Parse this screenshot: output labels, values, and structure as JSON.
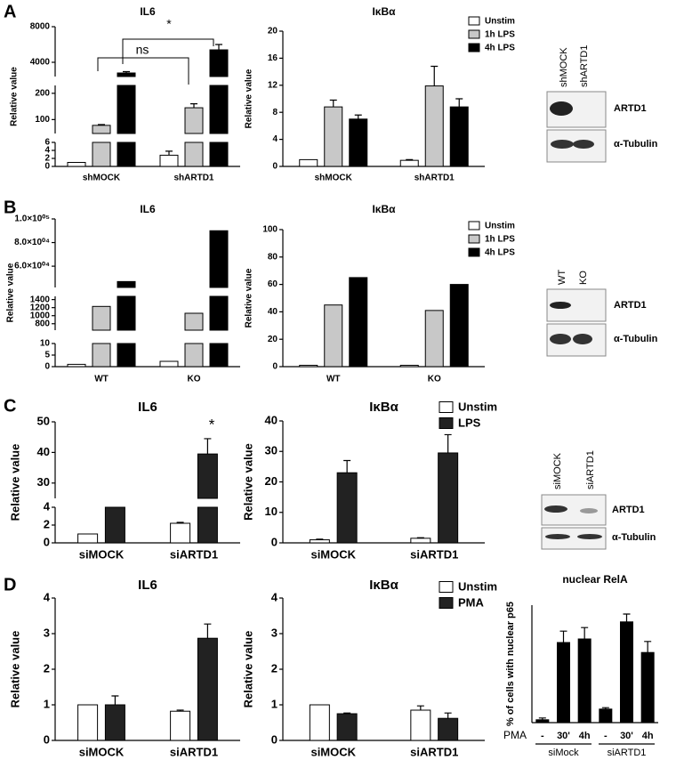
{
  "panels": [
    "A",
    "B",
    "C",
    "D"
  ],
  "blots": [
    {
      "lanes": [
        "shMOCK",
        "shARTD1"
      ],
      "bands": [
        "ARTD1",
        "α-Tubulin"
      ]
    },
    {
      "lanes": [
        "WT",
        "KO"
      ],
      "bands": [
        "ARTD1",
        "α-Tubulin"
      ]
    },
    {
      "lanes": [
        "siMOCK",
        "siARTD1"
      ],
      "bands": [
        "ARTD1",
        "α-Tubulin"
      ]
    }
  ],
  "chart_data": [
    {
      "type": "bar",
      "title": "IL6",
      "ylabel": "Relative value",
      "categories": [
        "shMOCK",
        "shARTD1"
      ],
      "series": [
        {
          "name": "Unstim",
          "color": "#ffffff",
          "values": [
            1,
            2.8
          ],
          "errors": [
            0,
            1
          ]
        },
        {
          "name": "1h LPS",
          "color": "#c8c8c8",
          "values": [
            78,
            145
          ],
          "errors": [
            3,
            15
          ]
        },
        {
          "name": "4h LPS",
          "color": "#000000",
          "values": [
            2800,
            5400
          ],
          "errors": [
            150,
            600
          ]
        }
      ],
      "segments": [
        {
          "ylim": [
            0,
            6
          ],
          "yticks": [
            0,
            2,
            4,
            6
          ]
        },
        {
          "ylim": [
            47,
            230
          ],
          "yticks": [
            100,
            200
          ]
        },
        {
          "ylim": [
            2400,
            8000
          ],
          "yticks": [
            4000,
            8000
          ]
        }
      ],
      "legend": false,
      "annotations": [
        "ns",
        "*"
      ]
    },
    {
      "type": "bar",
      "title": "IκBα",
      "ylabel": "Relative value",
      "categories": [
        "shMOCK",
        "shARTD1"
      ],
      "series": [
        {
          "name": "Unstim",
          "color": "#ffffff",
          "values": [
            1,
            0.9
          ],
          "errors": [
            0,
            0.1
          ]
        },
        {
          "name": "1h LPS",
          "color": "#c8c8c8",
          "values": [
            8.8,
            11.9
          ],
          "errors": [
            1,
            2.9
          ]
        },
        {
          "name": "4h LPS",
          "color": "#000000",
          "values": [
            7,
            8.8
          ],
          "errors": [
            0.6,
            1.2
          ]
        }
      ],
      "ylim": [
        0,
        20
      ],
      "yticks": [
        0,
        4,
        8,
        12,
        16,
        20
      ],
      "legend": true
    },
    {
      "type": "bar",
      "title": "IL6",
      "ylabel": "Relative value",
      "categories": [
        "WT",
        "KO"
      ],
      "series": [
        {
          "name": "Unstim",
          "color": "#ffffff",
          "values": [
            1,
            2.3
          ]
        },
        {
          "name": "1h LPS",
          "color": "#c8c8c8",
          "values": [
            1230,
            1060
          ]
        },
        {
          "name": "4h LPS",
          "color": "#000000",
          "values": [
            47000,
            90000
          ]
        }
      ],
      "segments": [
        {
          "ylim": [
            0,
            10
          ],
          "yticks": [
            0,
            5,
            10
          ]
        },
        {
          "ylim": [
            640,
            1480
          ],
          "yticks": [
            800,
            1000,
            1200,
            1400
          ]
        },
        {
          "ylim": [
            42000,
            100000
          ],
          "yticks": [
            {
              "value": 60000,
              "label": "6.0×10⁰⁴"
            },
            {
              "value": 80000,
              "label": "8.0×10⁰⁴"
            },
            {
              "value": 100000,
              "label": "1.0×10⁰⁵"
            }
          ]
        }
      ],
      "legend": false
    },
    {
      "type": "bar",
      "title": "IκBα",
      "ylabel": "Relative value",
      "categories": [
        "WT",
        "KO"
      ],
      "series": [
        {
          "name": "Unstim",
          "color": "#ffffff",
          "values": [
            1,
            1
          ]
        },
        {
          "name": "1h LPS",
          "color": "#c8c8c8",
          "values": [
            45,
            41
          ]
        },
        {
          "name": "4h LPS",
          "color": "#000000",
          "values": [
            65,
            60
          ]
        }
      ],
      "ylim": [
        0,
        100
      ],
      "yticks": [
        0,
        20,
        40,
        60,
        80,
        100
      ],
      "legend": true
    },
    {
      "type": "bar",
      "title": "IL6",
      "ylabel": "Relative value",
      "categories": [
        "siMOCK",
        "siARTD1"
      ],
      "series": [
        {
          "name": "Unstim",
          "color": "#ffffff",
          "values": [
            1,
            2.2
          ],
          "errors": [
            0,
            0.1
          ]
        },
        {
          "name": "LPS",
          "color": "#222222",
          "values": [
            4,
            39.5
          ],
          "errors": [
            0,
            5
          ]
        }
      ],
      "segments": [
        {
          "ylim": [
            0,
            4
          ],
          "yticks": [
            0,
            2,
            4
          ]
        },
        {
          "ylim": [
            25,
            50
          ],
          "yticks": [
            30,
            40,
            50
          ]
        }
      ],
      "legend": false,
      "annotations": [
        "*"
      ]
    },
    {
      "type": "bar",
      "title": "IκBα",
      "ylabel": "Relative value",
      "categories": [
        "siMOCK",
        "siARTD1"
      ],
      "series": [
        {
          "name": "Unstim",
          "color": "#ffffff",
          "values": [
            1,
            1.5
          ],
          "errors": [
            0.2,
            0.2
          ]
        },
        {
          "name": "LPS",
          "color": "#222222",
          "values": [
            23,
            29.5
          ],
          "errors": [
            4,
            6
          ]
        }
      ],
      "ylim": [
        0,
        40
      ],
      "yticks": [
        0,
        10,
        20,
        30,
        40
      ],
      "legend": true
    },
    {
      "type": "bar",
      "title": "IL6",
      "ylabel": "Relative value",
      "categories": [
        "siMOCK",
        "siARTD1"
      ],
      "series": [
        {
          "name": "Unstim",
          "color": "#ffffff",
          "values": [
            1,
            0.82
          ],
          "errors": [
            0,
            0.03
          ]
        },
        {
          "name": "PMA",
          "color": "#222222",
          "values": [
            1,
            2.87
          ],
          "errors": [
            0.25,
            0.4
          ]
        }
      ],
      "ylim": [
        0,
        4
      ],
      "yticks": [
        0,
        1,
        2,
        3,
        4
      ],
      "legend": false
    },
    {
      "type": "bar",
      "title": "IκBα",
      "ylabel": "Relative value",
      "categories": [
        "siMOCK",
        "siARTD1"
      ],
      "series": [
        {
          "name": "Unstim",
          "color": "#ffffff",
          "values": [
            1,
            0.85
          ],
          "errors": [
            0,
            0.12
          ]
        },
        {
          "name": "PMA",
          "color": "#222222",
          "values": [
            0.75,
            0.62
          ],
          "errors": [
            0.02,
            0.15
          ]
        }
      ],
      "ylim": [
        0,
        4
      ],
      "yticks": [
        0,
        1,
        2,
        3,
        4
      ],
      "legend": true
    },
    {
      "type": "bar",
      "title": "nuclear RelA",
      "ylabel": "% of cells with nuclear p65",
      "xlabel": "PMA",
      "categories": [
        "-",
        "30'",
        "4h",
        "-",
        "30'",
        "4h"
      ],
      "groups": [
        "siMock",
        "siARTD1"
      ],
      "series": [
        {
          "color": "#000000",
          "values": [
            0.8,
            22.5,
            23.5,
            3.8,
            28.3,
            19.7
          ],
          "errors": [
            0.5,
            3.2,
            3.2,
            0.4,
            2.2,
            3.1
          ]
        }
      ],
      "ylim": [
        0,
        33
      ],
      "legend": false
    }
  ]
}
